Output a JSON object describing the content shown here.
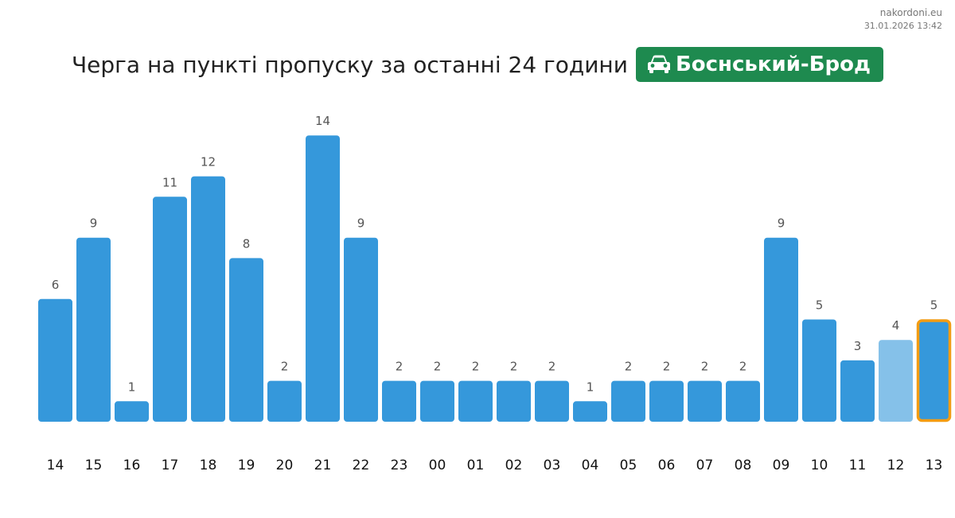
{
  "site": {
    "name": "nakordoni.eu",
    "datetime": "31.01.2026 13:42"
  },
  "header": {
    "title": "Черга на пункті пропуску за останні 24 години",
    "checkpoint_name": "Боснський-Брод",
    "checkpoint_icon": "car-icon",
    "badge_color": "#1e8a4f"
  },
  "chart_data": {
    "type": "bar",
    "title": "Черга на пункті пропуску за останні 24 години",
    "xlabel": "",
    "ylabel": "",
    "ylim": [
      0,
      14
    ],
    "grid": false,
    "categories": [
      "14",
      "15",
      "16",
      "17",
      "18",
      "19",
      "20",
      "21",
      "22",
      "23",
      "00",
      "01",
      "02",
      "03",
      "04",
      "05",
      "06",
      "07",
      "08",
      "09",
      "10",
      "11",
      "12",
      "13"
    ],
    "values": [
      6,
      9,
      1,
      11,
      12,
      8,
      2,
      14,
      9,
      2,
      2,
      2,
      2,
      2,
      1,
      2,
      2,
      2,
      2,
      9,
      5,
      3,
      4,
      5
    ],
    "bar_color": "#3598db",
    "forecast_color": "#85c1e9",
    "forecast_index": 22,
    "highlight_index": 23,
    "highlight_border_color": "#f39c12"
  }
}
